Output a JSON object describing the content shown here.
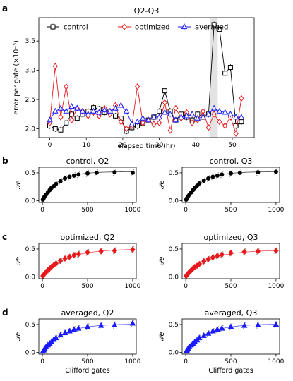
{
  "chart_data": [
    {
      "type": "line",
      "panel": "a",
      "title": "Q2-Q3",
      "xlabel": "elapsed time (hr)",
      "ylabel": "error per gate (×10⁻³)",
      "xlim": [
        -3,
        56
      ],
      "ylim": [
        1.85,
        3.9
      ],
      "xticks": [
        "0",
        "10",
        "20",
        "30",
        "40",
        "50"
      ],
      "yticks": [
        "2.0",
        "2.5",
        "3.0",
        "3.5"
      ],
      "legend": "top",
      "shaded_region": [
        44,
        46
      ],
      "series": [
        {
          "name": "control",
          "color": "#000000",
          "marker": "square",
          "x": [
            0,
            1.5,
            3,
            4.5,
            6,
            7.5,
            9,
            10.5,
            12,
            13.5,
            15,
            16.5,
            18,
            19.5,
            21,
            22.5,
            24,
            25.5,
            27,
            28.5,
            30,
            31.5,
            33,
            34.5,
            36,
            37.5,
            39,
            40.5,
            42,
            43.5,
            45,
            46.5,
            48,
            49.5,
            51,
            52.5
          ],
          "y": [
            2.05,
            2.0,
            1.98,
            2.1,
            2.25,
            2.18,
            2.25,
            2.3,
            2.36,
            2.34,
            2.28,
            2.3,
            2.22,
            2.18,
            1.96,
            2.02,
            2.05,
            2.1,
            2.15,
            2.2,
            2.3,
            2.65,
            2.3,
            2.15,
            2.25,
            2.2,
            2.15,
            2.25,
            2.2,
            2.25,
            3.78,
            3.7,
            2.95,
            3.05,
            2.05,
            2.12
          ]
        },
        {
          "name": "optimized",
          "color": "#e8191c",
          "marker": "diamond",
          "x": [
            0,
            1.5,
            3,
            4.5,
            6,
            7.5,
            9,
            10.5,
            12,
            13.5,
            15,
            16.5,
            18,
            19.5,
            21,
            22.5,
            24,
            25.5,
            27,
            28.5,
            30,
            31.5,
            33,
            34.5,
            36,
            37.5,
            39,
            40.5,
            42,
            43.5,
            45,
            46.5,
            48,
            49.5,
            51,
            52.5
          ],
          "y": [
            2.1,
            3.07,
            2.2,
            2.72,
            2.15,
            2.35,
            2.3,
            2.22,
            2.28,
            2.22,
            2.35,
            2.25,
            2.4,
            2.12,
            2.0,
            2.05,
            2.72,
            2.1,
            2.15,
            2.08,
            2.1,
            2.45,
            1.97,
            2.35,
            2.18,
            2.28,
            2.1,
            2.15,
            2.3,
            2.02,
            2.25,
            2.12,
            2.05,
            2.2,
            1.92,
            2.52
          ]
        },
        {
          "name": "averaged",
          "color": "#1a1aff",
          "marker": "triangle",
          "x": [
            0,
            1.5,
            3,
            4.5,
            6,
            7.5,
            9,
            10.5,
            12,
            13.5,
            15,
            16.5,
            18,
            19.5,
            21,
            22.5,
            24,
            25.5,
            27,
            28.5,
            30,
            31.5,
            33,
            34.5,
            36,
            37.5,
            39,
            40.5,
            42,
            43.5,
            45,
            46.5,
            48,
            49.5,
            51,
            52.5
          ],
          "y": [
            2.15,
            2.3,
            2.35,
            2.3,
            2.38,
            2.35,
            2.3,
            2.25,
            2.3,
            2.28,
            2.32,
            2.3,
            2.35,
            2.4,
            2.3,
            2.08,
            2.12,
            2.18,
            2.15,
            2.2,
            2.2,
            2.28,
            2.25,
            2.15,
            2.2,
            2.22,
            2.25,
            2.18,
            2.2,
            2.25,
            2.35,
            2.3,
            2.28,
            2.25,
            2.2,
            2.2
          ]
        }
      ]
    },
    {
      "type": "scatter",
      "panel": "b",
      "title": "control, Q2",
      "ylabel": "𝒫e",
      "xlim": [
        -40,
        1040
      ],
      "ylim": [
        -0.03,
        0.6
      ],
      "xticks": [
        "0",
        "500",
        "1000"
      ],
      "yticks": [
        "0.0",
        "0.5"
      ],
      "color": "#000000",
      "marker": "circle",
      "x": [
        5,
        15,
        25,
        40,
        60,
        80,
        100,
        125,
        150,
        200,
        250,
        300,
        350,
        400,
        500,
        600,
        800,
        1000
      ],
      "y": [
        0.02,
        0.05,
        0.08,
        0.11,
        0.15,
        0.19,
        0.23,
        0.26,
        0.3,
        0.35,
        0.4,
        0.43,
        0.45,
        0.47,
        0.49,
        0.5,
        0.51,
        0.5
      ],
      "fit": {
        "amplitude": 0.52,
        "rate": 0.006
      }
    },
    {
      "type": "scatter",
      "panel": "b",
      "title": "control, Q3",
      "ylabel": "𝒫e",
      "xlim": [
        -40,
        1040
      ],
      "ylim": [
        -0.03,
        0.6
      ],
      "xticks": [
        "0",
        "500",
        "1000"
      ],
      "yticks": [
        "0.0",
        "0.5"
      ],
      "color": "#000000",
      "marker": "circle",
      "x": [
        5,
        15,
        25,
        40,
        60,
        80,
        100,
        125,
        150,
        200,
        250,
        300,
        350,
        400,
        500,
        600,
        800,
        1000
      ],
      "y": [
        0.02,
        0.05,
        0.08,
        0.11,
        0.15,
        0.19,
        0.23,
        0.27,
        0.31,
        0.36,
        0.4,
        0.43,
        0.45,
        0.47,
        0.49,
        0.5,
        0.51,
        0.52
      ],
      "fit": {
        "amplitude": 0.52,
        "rate": 0.0058
      }
    },
    {
      "type": "scatter",
      "panel": "c",
      "title": "optimized, Q2",
      "ylabel": "𝒫e",
      "xlim": [
        -40,
        1040
      ],
      "ylim": [
        -0.03,
        0.6
      ],
      "xticks": [
        "0",
        "500",
        "1000"
      ],
      "yticks": [
        "0.0",
        "0.5"
      ],
      "color": "#e8191c",
      "marker": "diamond",
      "x": [
        5,
        15,
        25,
        40,
        60,
        80,
        100,
        125,
        150,
        200,
        250,
        300,
        350,
        400,
        500,
        650,
        800,
        1000
      ],
      "y": [
        0.02,
        0.04,
        0.06,
        0.09,
        0.12,
        0.15,
        0.18,
        0.21,
        0.24,
        0.29,
        0.33,
        0.36,
        0.39,
        0.41,
        0.44,
        0.46,
        0.47,
        0.49
      ],
      "fit": {
        "amplitude": 0.5,
        "rate": 0.004
      }
    },
    {
      "type": "scatter",
      "panel": "c",
      "title": "optimized, Q3",
      "ylabel": "𝒫e",
      "xlim": [
        -40,
        1040
      ],
      "ylim": [
        -0.03,
        0.6
      ],
      "xticks": [
        "0",
        "500",
        "1000"
      ],
      "yticks": [
        "0.0",
        "0.5"
      ],
      "color": "#e8191c",
      "marker": "diamond",
      "x": [
        5,
        15,
        25,
        40,
        60,
        80,
        100,
        125,
        150,
        200,
        250,
        300,
        350,
        400,
        500,
        650,
        800,
        1000
      ],
      "y": [
        0.02,
        0.04,
        0.06,
        0.09,
        0.12,
        0.15,
        0.18,
        0.2,
        0.23,
        0.28,
        0.32,
        0.35,
        0.38,
        0.4,
        0.43,
        0.45,
        0.46,
        0.47
      ],
      "fit": {
        "amplitude": 0.48,
        "rate": 0.004
      }
    },
    {
      "type": "scatter",
      "panel": "d",
      "title": "averaged, Q2",
      "xlabel": "Clifford gates",
      "ylabel": "𝒫e",
      "xlim": [
        -40,
        1040
      ],
      "ylim": [
        -0.03,
        0.6
      ],
      "xticks": [
        "0",
        "500",
        "1000"
      ],
      "yticks": [
        "0.0",
        "0.5"
      ],
      "color": "#1a1aff",
      "marker": "triangle",
      "x": [
        5,
        15,
        25,
        40,
        60,
        80,
        100,
        125,
        150,
        200,
        250,
        300,
        350,
        400,
        500,
        650,
        800,
        1000
      ],
      "y": [
        0.02,
        0.04,
        0.07,
        0.1,
        0.13,
        0.16,
        0.19,
        0.23,
        0.26,
        0.31,
        0.35,
        0.38,
        0.41,
        0.43,
        0.46,
        0.48,
        0.49,
        0.52
      ],
      "fit": {
        "amplitude": 0.51,
        "rate": 0.0045
      }
    },
    {
      "type": "scatter",
      "panel": "d",
      "title": "averaged, Q3",
      "xlabel": "Clifford gates",
      "ylabel": "𝒫e",
      "xlim": [
        -40,
        1040
      ],
      "ylim": [
        -0.03,
        0.6
      ],
      "xticks": [
        "0",
        "500",
        "1000"
      ],
      "yticks": [
        "0.0",
        "0.5"
      ],
      "color": "#1a1aff",
      "marker": "triangle",
      "x": [
        5,
        15,
        25,
        40,
        60,
        80,
        100,
        125,
        150,
        200,
        250,
        300,
        350,
        400,
        500,
        650,
        800,
        1000
      ],
      "y": [
        0.02,
        0.04,
        0.07,
        0.1,
        0.13,
        0.16,
        0.19,
        0.22,
        0.26,
        0.3,
        0.34,
        0.38,
        0.41,
        0.43,
        0.46,
        0.48,
        0.49,
        0.5
      ],
      "fit": {
        "amplitude": 0.51,
        "rate": 0.0045
      }
    }
  ],
  "panel_labels": [
    "a",
    "b",
    "c",
    "d"
  ]
}
